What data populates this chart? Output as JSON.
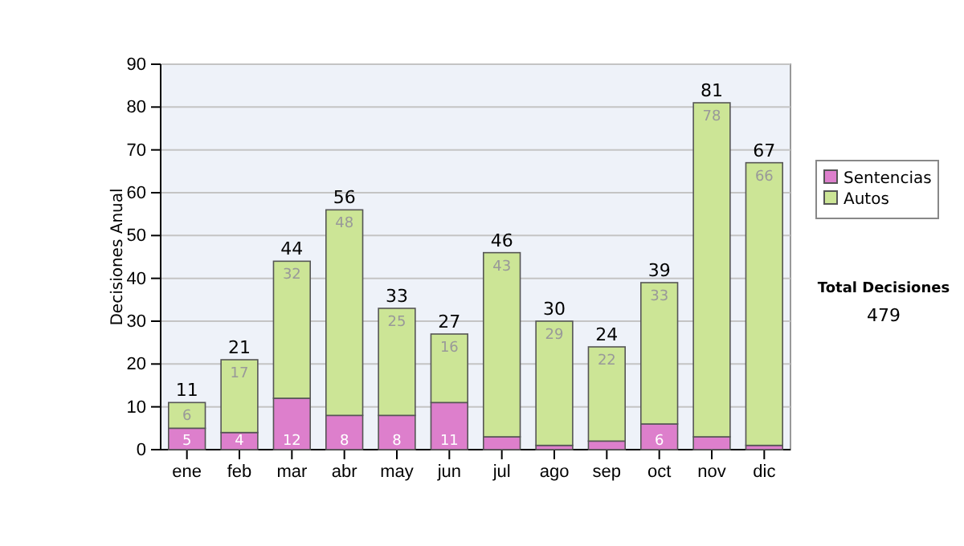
{
  "chart_data": {
    "type": "bar",
    "stacked": true,
    "ylabel": "Decisiones Anual",
    "categories": [
      "ene",
      "feb",
      "mar",
      "abr",
      "may",
      "jun",
      "jul",
      "ago",
      "sep",
      "oct",
      "nov",
      "dic"
    ],
    "series": [
      {
        "name": "Sentencias",
        "color": "#dd7fcc",
        "values": [
          5,
          4,
          12,
          8,
          8,
          11,
          3,
          1,
          2,
          6,
          3,
          1
        ],
        "value_labels": [
          "5",
          "4",
          "12",
          "8",
          "8",
          "11",
          null,
          null,
          null,
          "6",
          null,
          null
        ]
      },
      {
        "name": "Autos",
        "color": "#cce596",
        "values": [
          6,
          17,
          32,
          48,
          25,
          16,
          43,
          29,
          22,
          33,
          78,
          66
        ],
        "value_labels": [
          "6",
          "17",
          "32",
          "48",
          "25",
          "16",
          "43",
          "29",
          "22",
          "33",
          "78",
          "66"
        ]
      }
    ],
    "totals": [
      "11",
      "21",
      "44",
      "56",
      "33",
      "27",
      "46",
      "30",
      "24",
      "39",
      "81",
      "67"
    ],
    "ylim": [
      0,
      90
    ],
    "yticks": [
      0,
      10,
      20,
      30,
      40,
      50,
      60,
      70,
      80,
      90
    ],
    "grid": "y",
    "legend": "right",
    "annotations": [
      "Total Decisiones",
      "479"
    ]
  }
}
